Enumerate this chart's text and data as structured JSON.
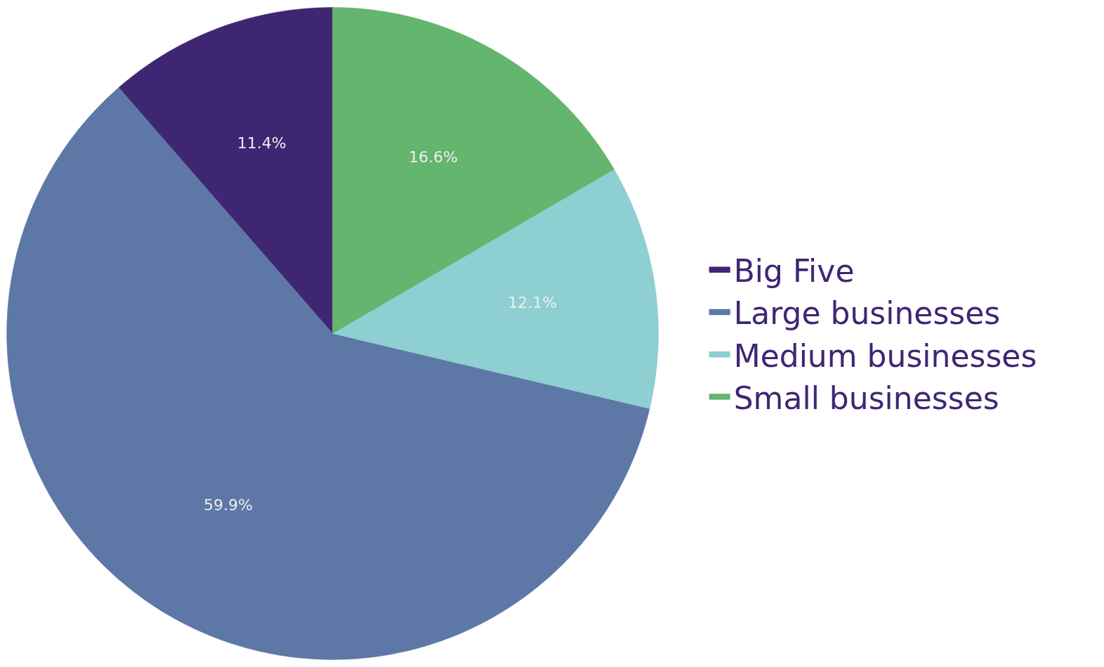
{
  "chart_data": {
    "type": "pie",
    "categories": [
      "Big Five",
      "Large businesses",
      "Medium businesses",
      "Small businesses"
    ],
    "values": [
      11.4,
      59.9,
      12.1,
      16.6
    ],
    "colors": [
      "#3f2672",
      "#5d77a6",
      "#8ecfd1",
      "#64b56e"
    ],
    "value_labels": [
      "11.4%",
      "59.9%",
      "12.1%",
      "16.6%"
    ],
    "legend": "right"
  }
}
